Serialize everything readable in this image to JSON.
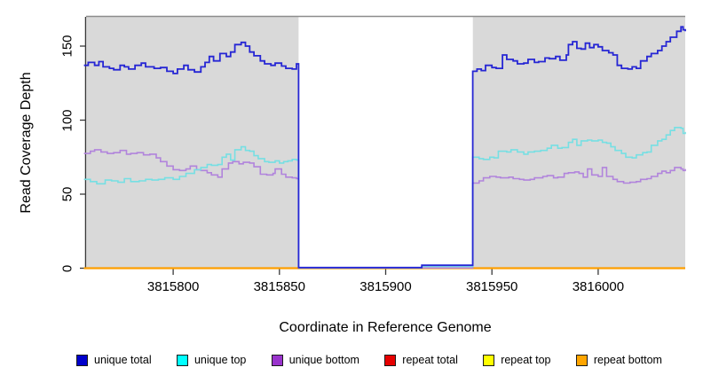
{
  "chart_data": {
    "type": "line",
    "title": "",
    "xlabel": "Coordinate in Reference Genome",
    "ylabel": "Read Coverage Depth",
    "xlim": [
      3815759,
      3816041
    ],
    "ylim": [
      0,
      170
    ],
    "x_ticks": [
      "3815800",
      "3815850",
      "3815900",
      "3815950",
      "3816000"
    ],
    "x_tick_values": [
      3815800,
      3815850,
      3815900,
      3815950,
      3816000
    ],
    "y_ticks": [
      "0",
      "50",
      "100",
      "150"
    ],
    "y_tick_values": [
      0,
      50,
      100,
      150
    ],
    "grid": "off",
    "plot_bg": "#d9d9d9",
    "page_bg": "#ffffff",
    "top_border_color": "#8c8c8c",
    "axis_color": "#383838",
    "gap_region": {
      "start": 3815859,
      "end": 3815941,
      "color": "#ffffff"
    },
    "legend_position": "bottom-horizontal",
    "draw_order": [
      3,
      4,
      5,
      2,
      1,
      0
    ],
    "series": [
      {
        "name": "unique total",
        "color": "#2626d4",
        "legend_color": "#0000cc",
        "stroke_width": 1.8,
        "step": true,
        "points": [
          [
            3815758,
            137
          ],
          [
            3815760,
            139
          ],
          [
            3815763,
            137
          ],
          [
            3815765,
            139.5
          ],
          [
            3815767,
            136
          ],
          [
            3815770,
            135
          ],
          [
            3815772,
            134
          ],
          [
            3815775,
            137
          ],
          [
            3815777,
            136
          ],
          [
            3815779,
            134.5
          ],
          [
            3815782,
            137
          ],
          [
            3815785,
            138.5
          ],
          [
            3815787,
            136
          ],
          [
            3815791,
            135
          ],
          [
            3815794,
            135.5
          ],
          [
            3815797,
            133
          ],
          [
            3815800,
            131.5
          ],
          [
            3815802,
            134.5
          ],
          [
            3815805,
            137
          ],
          [
            3815807,
            134
          ],
          [
            3815810,
            132.5
          ],
          [
            3815813,
            136
          ],
          [
            3815815,
            139
          ],
          [
            3815817,
            143
          ],
          [
            3815819,
            140
          ],
          [
            3815822,
            145
          ],
          [
            3815825,
            143
          ],
          [
            3815827,
            146
          ],
          [
            3815829,
            151
          ],
          [
            3815832,
            152.5
          ],
          [
            3815834,
            150
          ],
          [
            3815836,
            146
          ],
          [
            3815838,
            143.5
          ],
          [
            3815841,
            140
          ],
          [
            3815843,
            138
          ],
          [
            3815846,
            137
          ],
          [
            3815848,
            138.5
          ],
          [
            3815851,
            136.5
          ],
          [
            3815853,
            135
          ],
          [
            3815856,
            134.5
          ],
          [
            3815858,
            138
          ],
          [
            3815859,
            0.4
          ],
          [
            3815917,
            2
          ],
          [
            3815941,
            133
          ],
          [
            3815943,
            134.5
          ],
          [
            3815945,
            133.5
          ],
          [
            3815947,
            137
          ],
          [
            3815950,
            135.5
          ],
          [
            3815952,
            135
          ],
          [
            3815955,
            144
          ],
          [
            3815957,
            141
          ],
          [
            3815960,
            140
          ],
          [
            3815962,
            138
          ],
          [
            3815965,
            138.5
          ],
          [
            3815967,
            141
          ],
          [
            3815970,
            139
          ],
          [
            3815972,
            139.5
          ],
          [
            3815975,
            142
          ],
          [
            3815977,
            141.5
          ],
          [
            3815980,
            143
          ],
          [
            3815982,
            140.5
          ],
          [
            3815985,
            144
          ],
          [
            3815986,
            151
          ],
          [
            3815988,
            153
          ],
          [
            3815990,
            148.5
          ],
          [
            3815992,
            148
          ],
          [
            3815994,
            152
          ],
          [
            3815996,
            149
          ],
          [
            3815998,
            151
          ],
          [
            3816000,
            149.5
          ],
          [
            3816002,
            147
          ],
          [
            3816005,
            145.5
          ],
          [
            3816007,
            144
          ],
          [
            3816009,
            137
          ],
          [
            3816011,
            135
          ],
          [
            3816014,
            134.5
          ],
          [
            3816016,
            136
          ],
          [
            3816018,
            135
          ],
          [
            3816020,
            140
          ],
          [
            3816023,
            143
          ],
          [
            3816025,
            145
          ],
          [
            3816028,
            147
          ],
          [
            3816030,
            150
          ],
          [
            3816032,
            153
          ],
          [
            3816034,
            156
          ],
          [
            3816037,
            160
          ],
          [
            3816039,
            163
          ],
          [
            3816040,
            161
          ],
          [
            3816041,
            160
          ]
        ]
      },
      {
        "name": "unique top",
        "color": "#76dfe3",
        "legend_color": "#00ffff",
        "stroke_width": 1.6,
        "step": true,
        "points": [
          [
            3815758,
            60
          ],
          [
            3815761,
            58.5
          ],
          [
            3815764,
            57
          ],
          [
            3815768,
            59.5
          ],
          [
            3815771,
            59
          ],
          [
            3815774,
            58
          ],
          [
            3815777,
            60.5
          ],
          [
            3815780,
            58.5
          ],
          [
            3815784,
            59
          ],
          [
            3815787,
            60
          ],
          [
            3815790,
            59.5
          ],
          [
            3815793,
            60
          ],
          [
            3815796,
            61
          ],
          [
            3815800,
            60
          ],
          [
            3815803,
            62
          ],
          [
            3815806,
            64
          ],
          [
            3815810,
            66.5
          ],
          [
            3815813,
            68
          ],
          [
            3815816,
            70
          ],
          [
            3815818,
            69.5
          ],
          [
            3815821,
            70
          ],
          [
            3815823,
            75
          ],
          [
            3815825,
            77
          ],
          [
            3815827,
            73
          ],
          [
            3815829,
            80
          ],
          [
            3815832,
            82
          ],
          [
            3815834,
            79.5
          ],
          [
            3815836,
            79
          ],
          [
            3815838,
            76
          ],
          [
            3815840,
            74
          ],
          [
            3815843,
            72
          ],
          [
            3815845,
            71.5
          ],
          [
            3815848,
            72.5
          ],
          [
            3815850,
            71
          ],
          [
            3815852,
            72
          ],
          [
            3815854,
            72.5
          ],
          [
            3815856,
            73.5
          ],
          [
            3815858,
            73
          ],
          [
            3815859,
            0.3
          ],
          [
            3815917,
            1.2
          ],
          [
            3815941,
            75
          ],
          [
            3815944,
            74
          ],
          [
            3815946,
            73.5
          ],
          [
            3815949,
            75
          ],
          [
            3815951,
            74.5
          ],
          [
            3815953,
            79
          ],
          [
            3815957,
            78.5
          ],
          [
            3815959,
            80
          ],
          [
            3815962,
            78.5
          ],
          [
            3815965,
            77
          ],
          [
            3815967,
            78.5
          ],
          [
            3815970,
            79
          ],
          [
            3815973,
            79.5
          ],
          [
            3815976,
            81
          ],
          [
            3815978,
            83
          ],
          [
            3815981,
            81
          ],
          [
            3815983,
            81.5
          ],
          [
            3815986,
            85
          ],
          [
            3815988,
            87
          ],
          [
            3815990,
            83
          ],
          [
            3815992,
            86
          ],
          [
            3815995,
            86.5
          ],
          [
            3815997,
            86
          ],
          [
            3816000,
            86.5
          ],
          [
            3816002,
            85
          ],
          [
            3816004,
            84.5
          ],
          [
            3816006,
            82
          ],
          [
            3816008,
            79.5
          ],
          [
            3816011,
            77.5
          ],
          [
            3816013,
            75
          ],
          [
            3816016,
            74.5
          ],
          [
            3816018,
            76.5
          ],
          [
            3816021,
            78
          ],
          [
            3816023,
            78.5
          ],
          [
            3816025,
            83
          ],
          [
            3816028,
            86
          ],
          [
            3816030,
            87
          ],
          [
            3816032,
            90
          ],
          [
            3816034,
            93
          ],
          [
            3816036,
            95
          ],
          [
            3816039,
            94.5
          ],
          [
            3816040,
            91
          ],
          [
            3816041,
            92
          ]
        ]
      },
      {
        "name": "unique bottom",
        "color": "#b184dc",
        "legend_color": "#9933cc",
        "stroke_width": 1.6,
        "step": true,
        "points": [
          [
            3815758,
            77.5
          ],
          [
            3815761,
            79
          ],
          [
            3815763,
            80
          ],
          [
            3815766,
            78.5
          ],
          [
            3815769,
            77.5
          ],
          [
            3815772,
            78
          ],
          [
            3815775,
            79.5
          ],
          [
            3815778,
            77
          ],
          [
            3815780,
            77.5
          ],
          [
            3815783,
            78
          ],
          [
            3815786,
            76.5
          ],
          [
            3815789,
            77
          ],
          [
            3815792,
            74.5
          ],
          [
            3815794,
            72
          ],
          [
            3815797,
            69
          ],
          [
            3815800,
            66.5
          ],
          [
            3815803,
            66
          ],
          [
            3815806,
            67
          ],
          [
            3815808,
            69
          ],
          [
            3815811,
            66.5
          ],
          [
            3815813,
            66
          ],
          [
            3815816,
            64.5
          ],
          [
            3815818,
            63
          ],
          [
            3815821,
            61.5
          ],
          [
            3815823,
            67
          ],
          [
            3815826,
            71
          ],
          [
            3815828,
            72
          ],
          [
            3815831,
            70.5
          ],
          [
            3815833,
            71.5
          ],
          [
            3815836,
            71
          ],
          [
            3815838,
            68.5
          ],
          [
            3815841,
            63.5
          ],
          [
            3815844,
            63
          ],
          [
            3815847,
            64
          ],
          [
            3815848,
            67
          ],
          [
            3815851,
            63.5
          ],
          [
            3815853,
            61.5
          ],
          [
            3815856,
            61
          ],
          [
            3815858,
            60.5
          ],
          [
            3815859,
            0.2
          ],
          [
            3815941,
            57.5
          ],
          [
            3815944,
            59
          ],
          [
            3815946,
            61
          ],
          [
            3815949,
            62
          ],
          [
            3815952,
            61.5
          ],
          [
            3815954,
            61
          ],
          [
            3815958,
            61.5
          ],
          [
            3815960,
            60.5
          ],
          [
            3815963,
            60
          ],
          [
            3815965,
            59.5
          ],
          [
            3815968,
            60
          ],
          [
            3815970,
            61
          ],
          [
            3815974,
            62
          ],
          [
            3815976,
            62.5
          ],
          [
            3815979,
            61
          ],
          [
            3815981,
            61.5
          ],
          [
            3815984,
            64
          ],
          [
            3815986,
            64.5
          ],
          [
            3815989,
            65
          ],
          [
            3815991,
            64
          ],
          [
            3815993,
            61.5
          ],
          [
            3815995,
            67
          ],
          [
            3815997,
            63
          ],
          [
            3816000,
            62
          ],
          [
            3816002,
            68
          ],
          [
            3816004,
            62
          ],
          [
            3816007,
            60
          ],
          [
            3816009,
            58.5
          ],
          [
            3816012,
            57.5
          ],
          [
            3816015,
            58
          ],
          [
            3816018,
            58.5
          ],
          [
            3816020,
            60
          ],
          [
            3816023,
            60.5
          ],
          [
            3816025,
            62
          ],
          [
            3816028,
            64
          ],
          [
            3816030,
            65.5
          ],
          [
            3816032,
            64.5
          ],
          [
            3816034,
            66
          ],
          [
            3816036,
            68
          ],
          [
            3816039,
            67
          ],
          [
            3816040,
            66
          ],
          [
            3816041,
            67
          ]
        ]
      },
      {
        "name": "repeat total",
        "color": "#cc0000",
        "legend_color": "#e60000",
        "stroke_width": 1.5,
        "step": true,
        "points": [
          [
            3815758,
            0
          ],
          [
            3816041,
            0
          ]
        ]
      },
      {
        "name": "repeat top",
        "color": "#ffff00",
        "legend_color": "#ffff00",
        "stroke_width": 1.5,
        "step": true,
        "points": [
          [
            3815758,
            0
          ],
          [
            3816041,
            0
          ]
        ]
      },
      {
        "name": "repeat bottom",
        "color": "#ff9f00",
        "legend_color": "#ffa500",
        "stroke_width": 2.2,
        "step": true,
        "points": [
          [
            3815758,
            0
          ],
          [
            3816041,
            0
          ]
        ]
      }
    ]
  }
}
